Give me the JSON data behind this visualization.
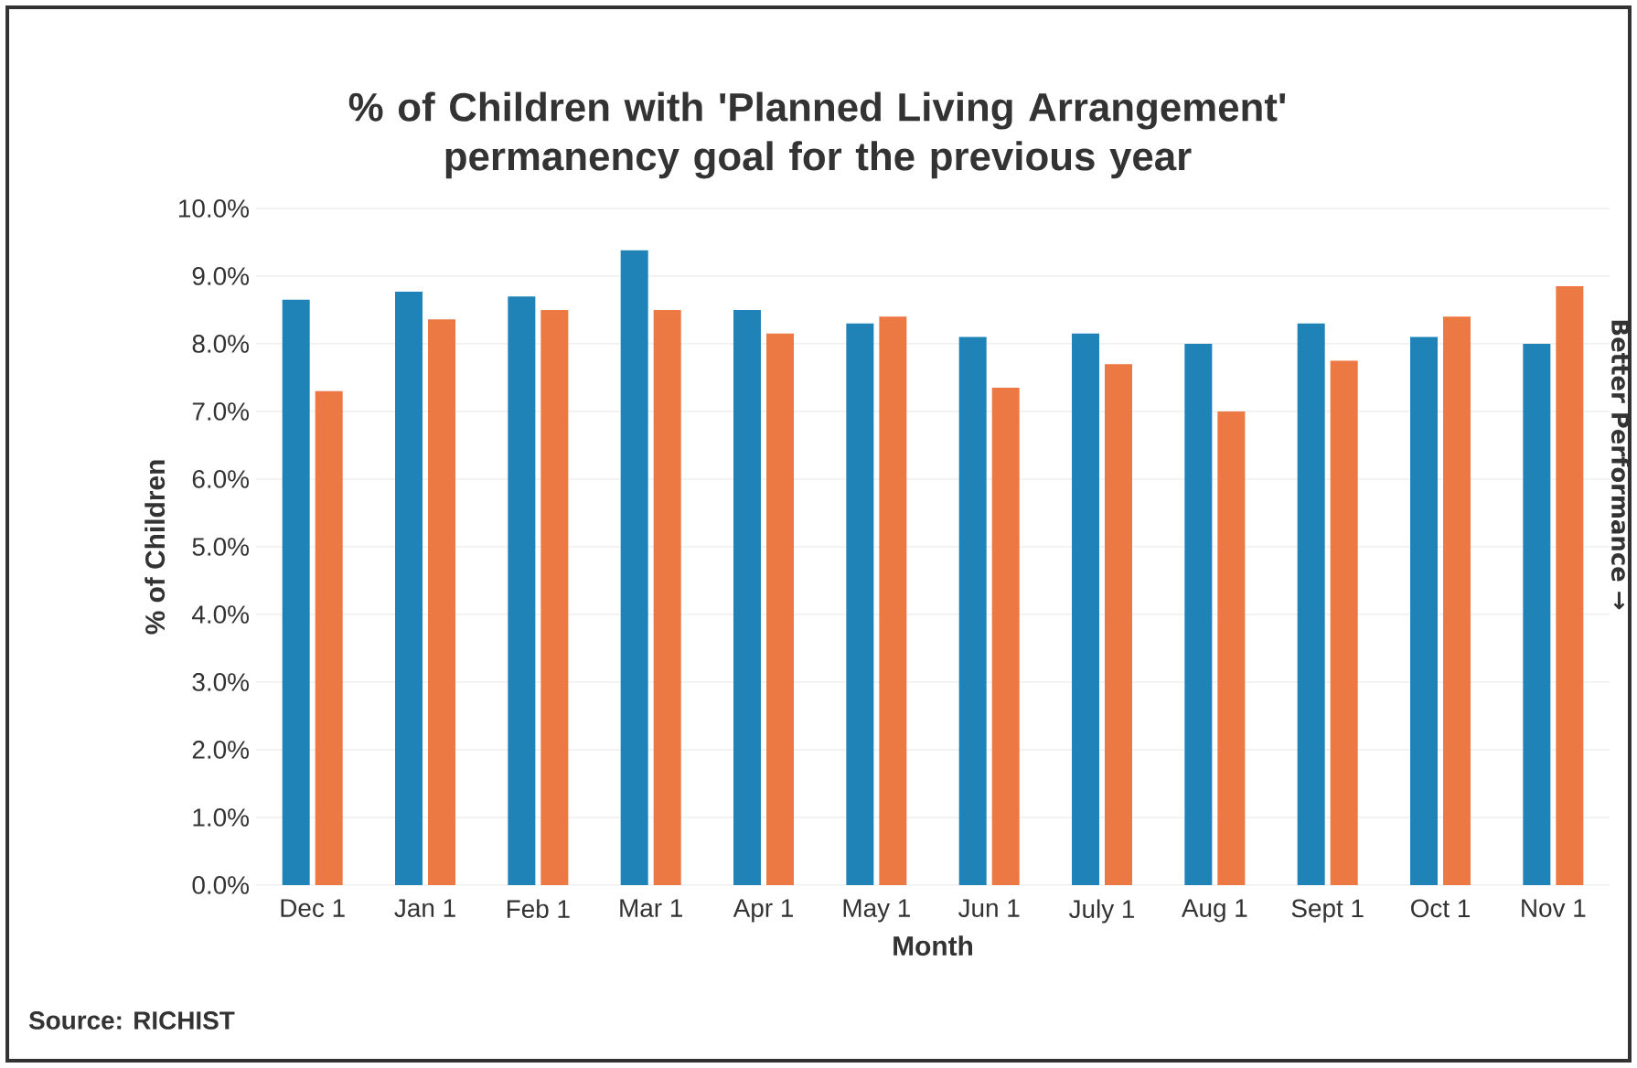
{
  "chart_data": {
    "type": "bar",
    "title": "% of Children with 'Planned Living Arrangement' permanency goal for the previous year",
    "xlabel": "Month",
    "ylabel": "% of Children",
    "categories": [
      "Dec 1",
      "Jan 1",
      "Feb 1",
      "Mar 1",
      "Apr 1",
      "May 1",
      "Jun 1",
      "July 1",
      "Aug 1",
      "Sept 1",
      "Oct 1",
      "Nov 1"
    ],
    "series": [
      {
        "color": "#1f83b8",
        "values": [
          8.65,
          8.77,
          8.7,
          9.38,
          8.5,
          8.3,
          8.1,
          8.15,
          8.0,
          8.3,
          8.1,
          8.0
        ]
      },
      {
        "color": "#ec7843",
        "values": [
          7.3,
          8.36,
          8.5,
          8.5,
          8.15,
          8.4,
          7.35,
          7.7,
          7.0,
          7.75,
          8.4,
          8.85
        ]
      }
    ],
    "ylim": [
      0,
      10
    ],
    "yticks": [
      {
        "value": 0,
        "label": "0.0%"
      },
      {
        "value": 1,
        "label": "1.0%"
      },
      {
        "value": 2,
        "label": "2.0%"
      },
      {
        "value": 3,
        "label": "3.0%"
      },
      {
        "value": 4,
        "label": "4.0%"
      },
      {
        "value": 5,
        "label": "5.0%"
      },
      {
        "value": 6,
        "label": "6.0%"
      },
      {
        "value": 7,
        "label": "7.0%"
      },
      {
        "value": 8,
        "label": "8.0%"
      },
      {
        "value": 9,
        "label": "9.0%"
      },
      {
        "value": 10,
        "label": "10.0%"
      }
    ],
    "grid": "y",
    "annotations": [
      "Better Performance →",
      "Source: RICHIST"
    ]
  }
}
